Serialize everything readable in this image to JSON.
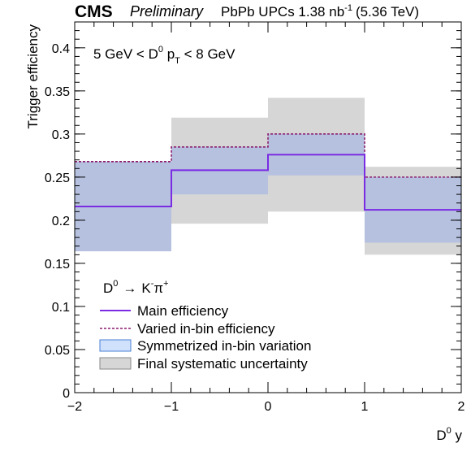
{
  "header": {
    "experiment": "CMS",
    "status": "Preliminary",
    "dataset": "PbPb UPCs 1.38 nb",
    "lumi_exp": "-1",
    "energy": "(5.36 TeV)"
  },
  "selection": {
    "p1": "5 GeV < D",
    "sup": "0",
    "p2": " p",
    "sub": "T",
    "p3": " < 8 GeV"
  },
  "decay": {
    "d": "D",
    "d_sup": "0",
    "arrow": "→",
    "k": "K",
    "k_sup": "-",
    "pi": "π",
    "pi_sup": "+"
  },
  "colors": {
    "main": "#7b2be2",
    "varied": "#8b1c6e",
    "band_fill": "#b3c0df",
    "syst_fill": "#d6d6d6",
    "legend_sym_fill": "#cfe1fb",
    "legend_sym_edge": "#4a7fd4"
  },
  "chart_data": {
    "type": "step",
    "ylabel": "Trigger efficiency",
    "xlabel_main": "D",
    "xlabel_sup": "0",
    "xlabel_var": " y",
    "xlim": [
      -2,
      2
    ],
    "ylim": [
      0,
      0.43
    ],
    "x_ticks": [
      -2,
      -1,
      0,
      1,
      2
    ],
    "x_tick_labels": [
      "−2",
      "−1",
      "0",
      "1",
      "2"
    ],
    "y_ticks": [
      0,
      0.05,
      0.1,
      0.15,
      0.2,
      0.25,
      0.3,
      0.35,
      0.4
    ],
    "y_tick_labels": [
      "0",
      "0.05",
      "0.1",
      "0.15",
      "0.2",
      "0.25",
      "0.3",
      "0.35",
      "0.4"
    ],
    "bin_edges": [
      -2,
      -1,
      0,
      1,
      2
    ],
    "series": [
      {
        "name": "Main efficiency",
        "kind": "solid-line",
        "values": [
          0.216,
          0.258,
          0.276,
          0.212
        ]
      },
      {
        "name": "Varied in-bin efficiency",
        "kind": "dashed-line",
        "values": [
          0.268,
          0.285,
          0.3,
          0.25
        ]
      },
      {
        "name": "Symmetrized in-bin variation",
        "kind": "band",
        "low": [
          0.164,
          0.23,
          0.252,
          0.174
        ],
        "high": [
          0.268,
          0.285,
          0.3,
          0.25
        ]
      },
      {
        "name": "Final systematic uncertainty",
        "kind": "band",
        "low": [
          0.164,
          0.196,
          0.21,
          0.16
        ],
        "high": [
          0.268,
          0.319,
          0.342,
          0.262
        ]
      }
    ]
  }
}
